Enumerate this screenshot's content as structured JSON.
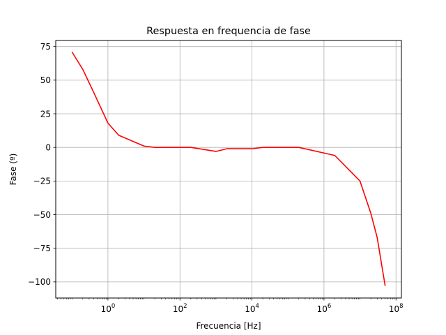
{
  "chart_data": {
    "type": "line",
    "title": "Respuesta en frequencia de fase",
    "xlabel": "Frecuencia [Hz]",
    "ylabel": "Fase (º)",
    "xscale": "log",
    "xlim_exp": [
      -1.45,
      8.15
    ],
    "ylim": [
      -112,
      79.5
    ],
    "grid": true,
    "x_ticks": [
      {
        "exp": 0,
        "base": "10",
        "sup": "0"
      },
      {
        "exp": 2,
        "base": "10",
        "sup": "2"
      },
      {
        "exp": 4,
        "base": "10",
        "sup": "4"
      },
      {
        "exp": 6,
        "base": "10",
        "sup": "6"
      },
      {
        "exp": 8,
        "base": "10",
        "sup": "8"
      }
    ],
    "y_ticks": [
      {
        "value": 75,
        "label": "75"
      },
      {
        "value": 50,
        "label": "50"
      },
      {
        "value": 25,
        "label": "25"
      },
      {
        "value": 0,
        "label": "0"
      },
      {
        "value": -25,
        "label": "−25"
      },
      {
        "value": -50,
        "label": "−50"
      },
      {
        "value": -75,
        "label": "−75"
      },
      {
        "value": -100,
        "label": "−100"
      }
    ],
    "series": [
      {
        "color": "#ff0000",
        "x": [
          0.1,
          0.2,
          0.4,
          1,
          2,
          10,
          20,
          200,
          1000,
          2000,
          10000,
          20000,
          200000,
          2000000,
          10000000,
          20000000,
          30000000,
          50000000
        ],
        "y": [
          71,
          58,
          41,
          18,
          9,
          1,
          0,
          0,
          -3,
          -1,
          -1,
          0,
          0,
          -6,
          -25,
          -49,
          -67,
          -103
        ]
      }
    ]
  }
}
